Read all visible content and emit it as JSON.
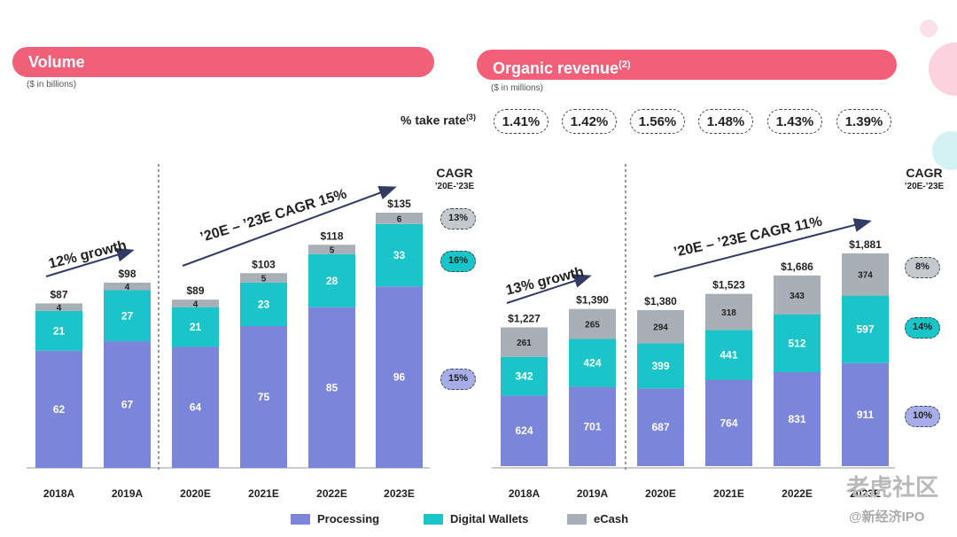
{
  "volume": {
    "title": "Volume",
    "unit": "($ in billions)",
    "cagr_title": "CAGR",
    "cagr_sub": "’20E-’23E"
  },
  "revenue": {
    "title": "Organic revenue",
    "title_sup": "(2)",
    "unit": "($ in millions)",
    "cagr_title": "CAGR",
    "cagr_sub": "’20E-’23E"
  },
  "take_rate": {
    "label": "% take rate",
    "label_sup": "(3)",
    "values": [
      "1.41%",
      "1.42%",
      "1.56%",
      "1.48%",
      "1.43%",
      "1.39%"
    ]
  },
  "legend": {
    "items": [
      {
        "label": "Processing",
        "color": "#7b85d9"
      },
      {
        "label": "Digital Wallets",
        "color": "#19c5c8"
      },
      {
        "label": "eCash",
        "color": "#a8afb6"
      }
    ]
  },
  "colors": {
    "processing": "#7b85d9",
    "wallets": "#19c5c8",
    "ecash": "#a8afb6",
    "accent": "#f25f79"
  },
  "watermark": {
    "line1": "老虎社区",
    "line2": "@新经济IPO"
  },
  "chart_data": [
    {
      "type": "bar",
      "stacked": true,
      "title": "Volume",
      "categories": [
        "2018A",
        "2019A",
        "2020E",
        "2021E",
        "2022E",
        "2023E"
      ],
      "series": [
        {
          "name": "Processing",
          "values": [
            62,
            67,
            64,
            75,
            85,
            96
          ]
        },
        {
          "name": "Digital Wallets",
          "values": [
            21,
            27,
            21,
            23,
            28,
            33
          ]
        },
        {
          "name": "eCash",
          "values": [
            4,
            4,
            4,
            5,
            5,
            6
          ]
        }
      ],
      "totals": [
        "$87",
        "$98",
        "$89",
        "$103",
        "$118",
        "$135"
      ],
      "ylim": [
        0,
        135
      ],
      "annotations": [
        {
          "text": "12% growth",
          "from": 0,
          "to": 1
        },
        {
          "text": "’20E – ’23E CAGR 15%",
          "from": 2,
          "to": 5
        }
      ],
      "cagr": [
        {
          "series": "eCash",
          "value": "13%"
        },
        {
          "series": "Digital Wallets",
          "value": "16%"
        },
        {
          "series": "Processing",
          "value": "15%"
        }
      ],
      "legend": "bottom"
    },
    {
      "type": "bar",
      "stacked": true,
      "title": "Organic revenue",
      "categories": [
        "2018A",
        "2019A",
        "2020E",
        "2021E",
        "2022E",
        "2023E"
      ],
      "series": [
        {
          "name": "Processing",
          "values": [
            624,
            701,
            687,
            764,
            831,
            911
          ]
        },
        {
          "name": "Digital Wallets",
          "values": [
            342,
            424,
            399,
            441,
            512,
            597
          ]
        },
        {
          "name": "eCash",
          "values": [
            261,
            265,
            294,
            318,
            343,
            374
          ]
        }
      ],
      "totals": [
        "$1,227",
        "$1,390",
        "$1,380",
        "$1,523",
        "$1,686",
        "$1,881"
      ],
      "ylim": [
        0,
        1881
      ],
      "annotations": [
        {
          "text": "13% growth",
          "from": 0,
          "to": 1
        },
        {
          "text": "’20E – ’23E CAGR 11%",
          "from": 2,
          "to": 5
        }
      ],
      "cagr": [
        {
          "series": "eCash",
          "value": "8%"
        },
        {
          "series": "Digital Wallets",
          "value": "14%"
        },
        {
          "series": "Processing",
          "value": "10%"
        }
      ],
      "legend": "bottom"
    }
  ]
}
